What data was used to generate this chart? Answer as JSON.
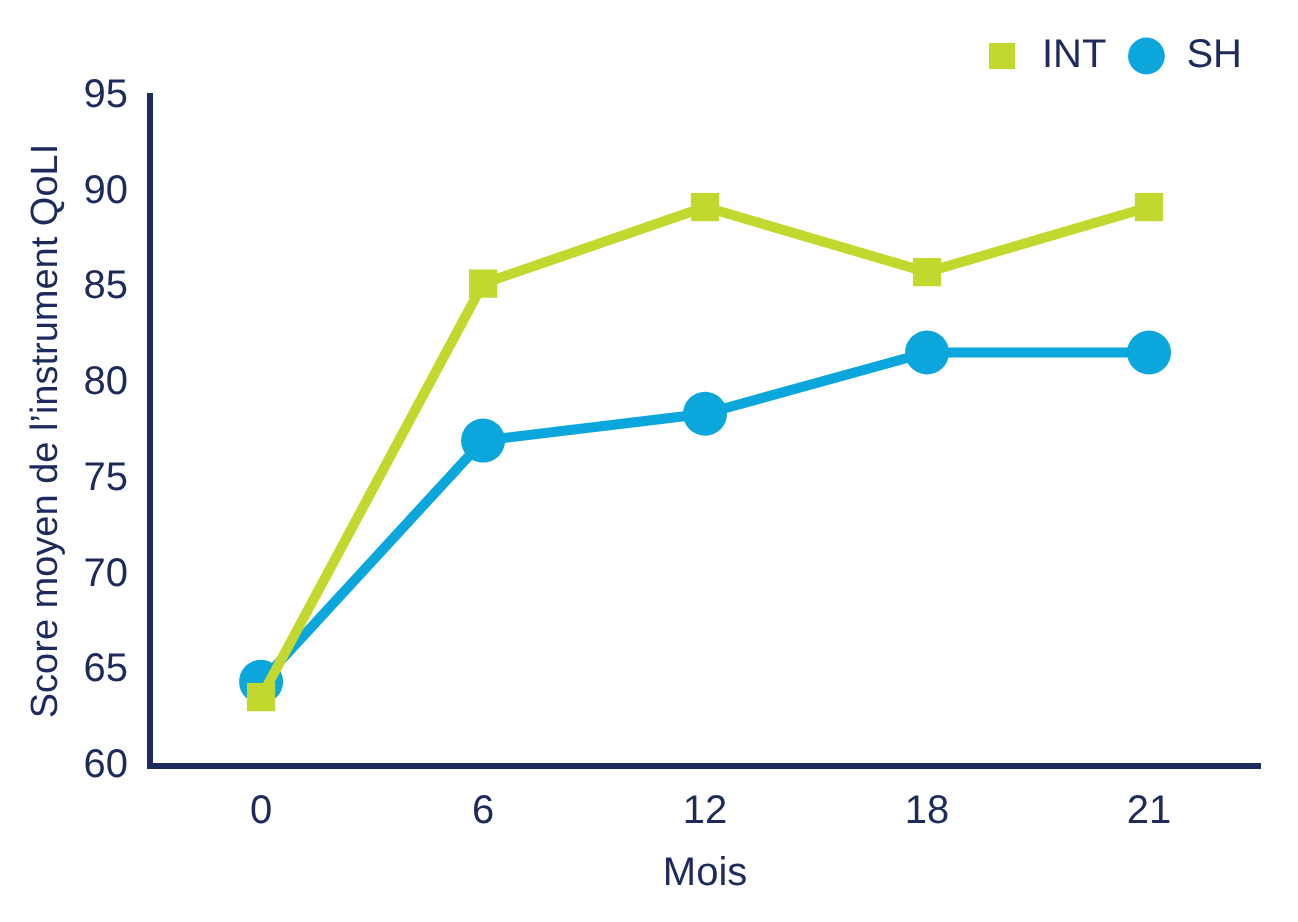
{
  "chart_data": {
    "type": "line",
    "xlabel": "Mois",
    "ylabel": "Score moyen de l’instrument QoLI",
    "categories": [
      "0",
      "6",
      "12",
      "18",
      "21"
    ],
    "series": [
      {
        "name": "INT",
        "color": "#c3d82e",
        "marker": "square",
        "values": [
          63.6,
          85.2,
          89.2,
          85.8,
          89.2
        ]
      },
      {
        "name": "SH",
        "color": "#0aa6dc",
        "marker": "circle",
        "values": [
          64.4,
          77.0,
          78.4,
          81.6,
          81.6
        ]
      }
    ],
    "ylim": [
      60,
      95
    ],
    "yticks": [
      60,
      65,
      70,
      75,
      80,
      85,
      90,
      95
    ],
    "grid": false,
    "legend": "top right",
    "line_style": "solid"
  }
}
